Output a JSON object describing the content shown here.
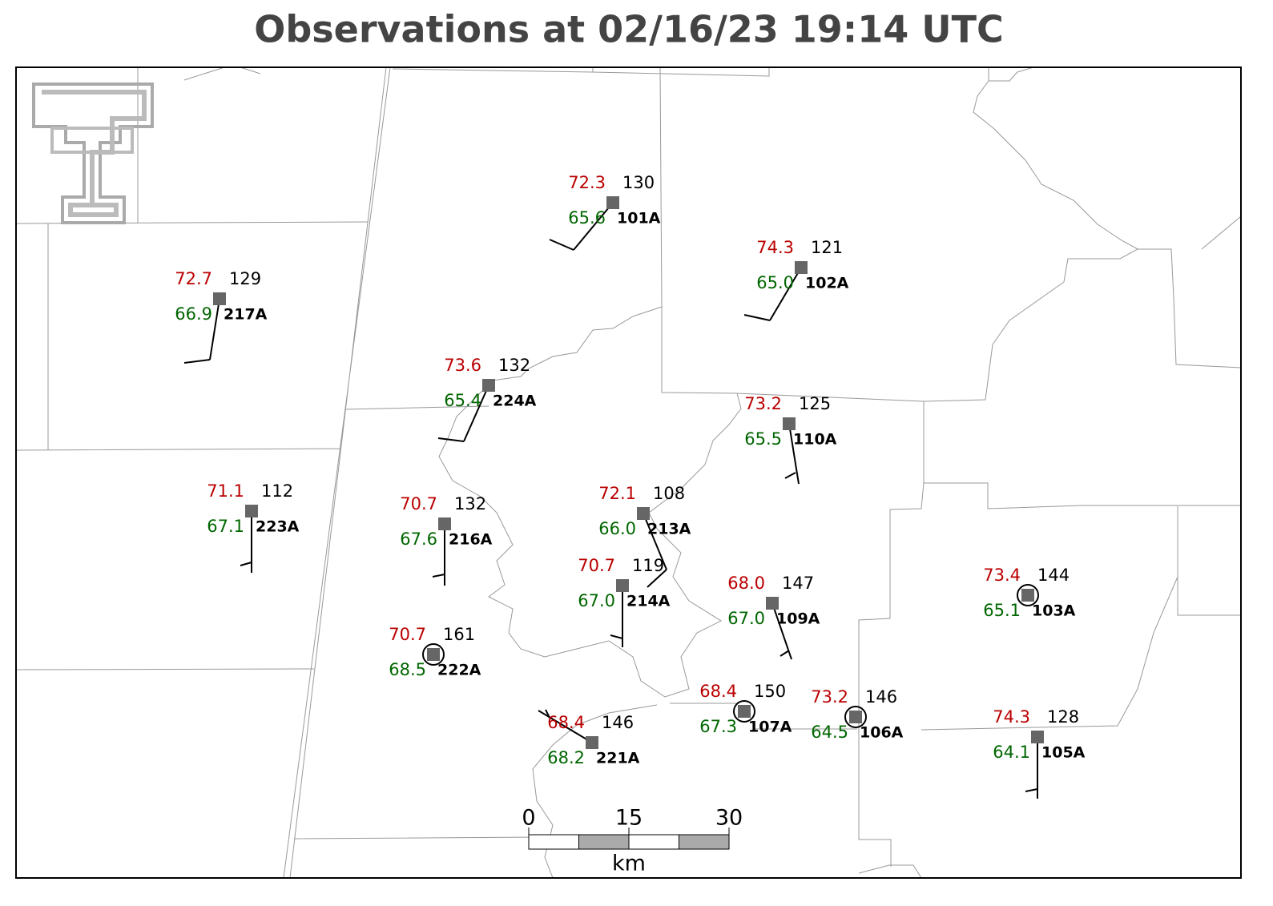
{
  "header": {
    "title": "Observations at 02/16/23 19:14 UTC"
  },
  "stations": [
    {
      "id": "101A",
      "temperature": "72.3",
      "dewpoint": "65.6",
      "pressure": "130"
    },
    {
      "id": "102A",
      "temperature": "74.3",
      "dewpoint": "65.0",
      "pressure": "121"
    },
    {
      "id": "217A",
      "temperature": "72.7",
      "dewpoint": "66.9",
      "pressure": "129"
    },
    {
      "id": "224A",
      "temperature": "73.6",
      "dewpoint": "65.4",
      "pressure": "132"
    },
    {
      "id": "110A",
      "temperature": "73.2",
      "dewpoint": "65.5",
      "pressure": "125"
    },
    {
      "id": "223A",
      "temperature": "71.1",
      "dewpoint": "67.1",
      "pressure": "112"
    },
    {
      "id": "216A",
      "temperature": "70.7",
      "dewpoint": "67.6",
      "pressure": "132"
    },
    {
      "id": "213A",
      "temperature": "72.1",
      "dewpoint": "66.0",
      "pressure": "108"
    },
    {
      "id": "214A",
      "temperature": "70.7",
      "dewpoint": "67.0",
      "pressure": "119"
    },
    {
      "id": "109A",
      "temperature": "68.0",
      "dewpoint": "67.0",
      "pressure": "147"
    },
    {
      "id": "222A",
      "temperature": "70.7",
      "dewpoint": "68.5",
      "pressure": "161"
    },
    {
      "id": "221A",
      "temperature": "68.4",
      "dewpoint": "68.2",
      "pressure": "146"
    },
    {
      "id": "107A",
      "temperature": "68.4",
      "dewpoint": "67.3",
      "pressure": "150"
    },
    {
      "id": "106A",
      "temperature": "73.2",
      "dewpoint": "64.5",
      "pressure": "146"
    },
    {
      "id": "103A",
      "temperature": "73.4",
      "dewpoint": "65.1",
      "pressure": "144"
    },
    {
      "id": "105A",
      "temperature": "74.3",
      "dewpoint": "64.1",
      "pressure": "128"
    }
  ],
  "scale_bar": {
    "labels": [
      "0",
      "15",
      "30"
    ],
    "unit": "km"
  }
}
